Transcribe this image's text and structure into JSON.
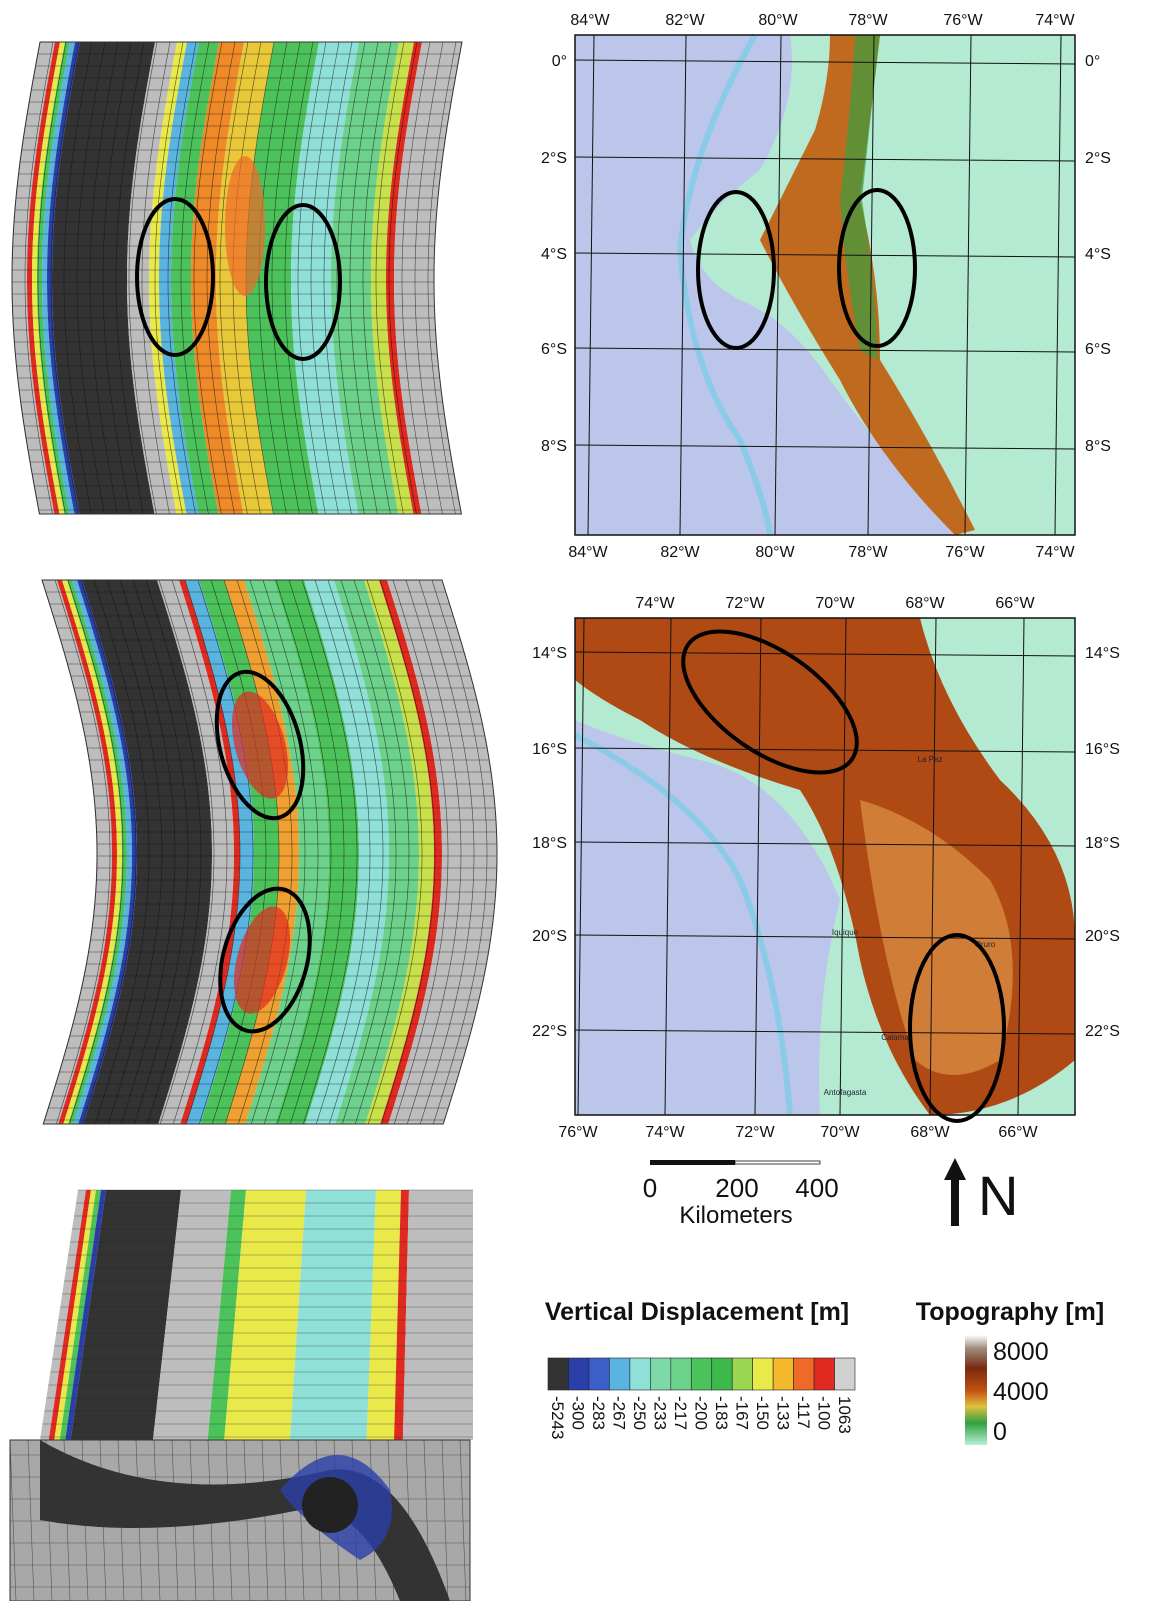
{
  "map_north": {
    "top_labels": [
      "84°W",
      "82°W",
      "80°W",
      "78°W",
      "76°W",
      "74°W"
    ],
    "bottom_labels": [
      "84°W",
      "82°W",
      "80°W",
      "78°W",
      "76°W",
      "74°W"
    ],
    "left_labels": [
      "0°",
      "2°S",
      "4°S",
      "6°S",
      "8°S"
    ],
    "right_labels": [
      "0°",
      "2°S",
      "4°S",
      "6°S",
      "8°S"
    ]
  },
  "map_south": {
    "top_labels": [
      "74°W",
      "72°W",
      "70°W",
      "68°W",
      "66°W"
    ],
    "bottom_labels": [
      "76°W",
      "74°W",
      "72°W",
      "70°W",
      "68°W",
      "66°W"
    ],
    "left_labels": [
      "14°S",
      "16°S",
      "18°S",
      "20°S",
      "22°S"
    ],
    "right_labels": [
      "14°S",
      "16°S",
      "18°S",
      "20°S",
      "22°S"
    ],
    "places": [
      "La Paz",
      "Iquique",
      "Oruro",
      "Calama",
      "Antofagasta"
    ]
  },
  "scale_bar": {
    "ticks": [
      "0",
      "200",
      "400"
    ],
    "unit": "Kilometers"
  },
  "north_arrow": "N",
  "vertical_displacement": {
    "title": "Vertical Displacement [m]",
    "labels": [
      "-5243",
      "-300",
      "-283",
      "-267",
      "-250",
      "-233",
      "-217",
      "-200",
      "-183",
      "-167",
      "-150",
      "-133",
      "-117",
      "-100",
      "1063"
    ]
  },
  "topography": {
    "title": "Topography [m]",
    "labels": [
      "8000",
      "4000",
      "0"
    ]
  }
}
